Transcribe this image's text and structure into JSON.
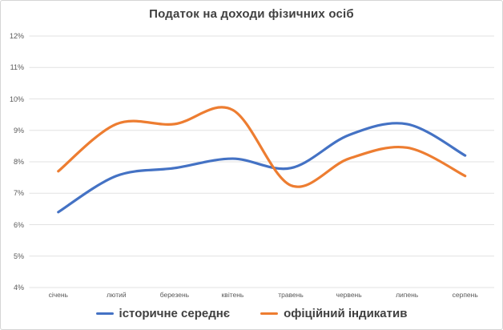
{
  "page": {
    "background": "#ffffff",
    "border_color": "#d5d5d5"
  },
  "colors": {
    "title_text": "#404040",
    "axis_label_text": "#595959",
    "gridline": "#e2e2e2",
    "legend_text": "#404040"
  },
  "chart_data": {
    "type": "line",
    "title": "Податок на доходи фізичних осіб",
    "categories": [
      "січень",
      "лютий",
      "березень",
      "квітень",
      "травень",
      "червень",
      "липень",
      "серпень"
    ],
    "series": [
      {
        "id": "historical-average",
        "name": "історичне середнє",
        "color": "#4472C4",
        "values": [
          6.4,
          7.55,
          7.8,
          8.1,
          7.8,
          8.85,
          9.2,
          8.2
        ]
      },
      {
        "id": "official-indicative",
        "name": "офіційний індикатив",
        "color": "#ED7D31",
        "values": [
          7.7,
          9.2,
          9.2,
          9.65,
          7.25,
          8.1,
          8.45,
          7.55
        ]
      }
    ],
    "xlabel": "",
    "ylabel": "",
    "ylim": [
      4,
      12
    ],
    "y_tick_step": 1,
    "y_tick_labels": [
      "4%",
      "5%",
      "6%",
      "7%",
      "8%",
      "9%",
      "10%",
      "11%",
      "12%"
    ],
    "grid": true,
    "vertical_grid": false,
    "smooth": true,
    "line_width": 3.2,
    "legend_position": "bottom"
  }
}
